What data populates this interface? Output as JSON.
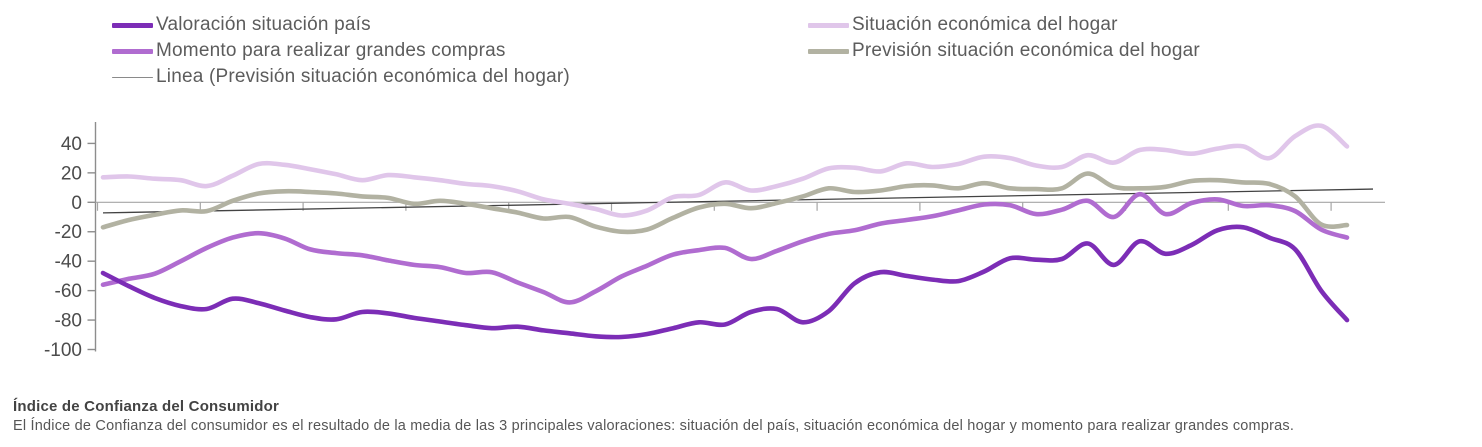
{
  "legend": {
    "columns": [
      {
        "items": [
          {
            "label": "Valoración situación país",
            "color": "#7c2db6",
            "thickness": 5
          },
          {
            "label": "Momento para realizar grandes compras",
            "color": "#b06cd0",
            "thickness": 5
          },
          {
            "label": "Linea (Previsión situación económica del hogar)",
            "color": "#8a8a8a",
            "thickness": 1
          }
        ]
      },
      {
        "items": [
          {
            "label": "Situación económica del hogar",
            "color": "#e0c6ea",
            "thickness": 5
          },
          {
            "label": "Previsión situación económica del hogar",
            "color": "#b2b2a2",
            "thickness": 5
          }
        ]
      }
    ]
  },
  "footer": {
    "title": "Índice de Confianza del Consumidor",
    "description": "El Índice de Confianza del consumidor es el resultado de la media de las 3 principales valoraciones: situación del país, situación económica del hogar y momento para realizar grandes compras."
  },
  "chart_data": {
    "type": "line",
    "title": "",
    "xlabel": "",
    "ylabel": "",
    "ylim": [
      -100,
      55
    ],
    "yticks": [
      40,
      20,
      0,
      -20,
      -40,
      -60,
      -80,
      -100
    ],
    "grid": false,
    "legend_position": "top",
    "x_axis_labels": "none shown (time axis with unlabeled year ticks)",
    "series": [
      {
        "id": "situacion-economica-hogar",
        "name": "Situación económica del hogar",
        "color": "#e0c6ea",
        "values": [
          17,
          17.5,
          16,
          15,
          11,
          18,
          26,
          25.5,
          22.5,
          19,
          15,
          18.5,
          17,
          15,
          12.5,
          11,
          7.5,
          2,
          -1,
          -4.5,
          -9,
          -5.5,
          3.5,
          5,
          13.5,
          8,
          11,
          16,
          23,
          23.5,
          21,
          26.5,
          24,
          26,
          31,
          30,
          25,
          24,
          32,
          27,
          35.5,
          35.5,
          33,
          36.5,
          38,
          30,
          45,
          52,
          38
        ]
      },
      {
        "id": "prevision-situacion-economica-hogar",
        "name": "Previsión situación económica del hogar",
        "color": "#b2b2a2",
        "values": [
          -17,
          -12,
          -8.5,
          -5.5,
          -6,
          1,
          6,
          7.5,
          7,
          6,
          4,
          3,
          -1,
          1,
          -1,
          -4,
          -7,
          -11,
          -10,
          -16.5,
          -20,
          -18.5,
          -10.5,
          -3.5,
          -1,
          -4,
          -0.5,
          4,
          9.5,
          7,
          8,
          11,
          11.5,
          9.5,
          13,
          9.5,
          9,
          9.5,
          19.5,
          10.5,
          9.5,
          10.5,
          14.5,
          15,
          13.5,
          12.5,
          4,
          -15,
          -15.5
        ]
      },
      {
        "id": "momento-grandes-compras",
        "name": "Momento para realizar grandes compras",
        "color": "#b06cd0",
        "values": [
          -56,
          -52,
          -48.5,
          -40,
          -31,
          -24,
          -21,
          -24.5,
          -32,
          -34.5,
          -36,
          -39.5,
          -42.5,
          -44,
          -48,
          -47.5,
          -54.5,
          -61,
          -68,
          -60.5,
          -50.5,
          -43,
          -35.5,
          -32.5,
          -31,
          -38.5,
          -33,
          -26.5,
          -21.5,
          -19,
          -14.5,
          -12,
          -9.5,
          -5.5,
          -1.5,
          -2,
          -8,
          -5,
          1,
          -10,
          5.5,
          -8,
          -0.5,
          2,
          -2.5,
          -2,
          -6,
          -18.5,
          -24
        ]
      },
      {
        "id": "valoracion-situacion-pais",
        "name": "Valoración situación país",
        "color": "#7c2db6",
        "values": [
          -48,
          -57,
          -65,
          -70.5,
          -72.5,
          -65.5,
          -68.5,
          -73.5,
          -78,
          -79.5,
          -74.5,
          -75.5,
          -78.5,
          -81,
          -83.5,
          -85.5,
          -84.5,
          -87,
          -89,
          -91,
          -91.5,
          -89.5,
          -85.5,
          -81.5,
          -83,
          -74.5,
          -72.5,
          -81.5,
          -74,
          -55,
          -47.5,
          -50,
          -52.5,
          -53.5,
          -47,
          -38,
          -39,
          -38.5,
          -28,
          -42.5,
          -26.5,
          -35,
          -29,
          -19,
          -17,
          -24,
          -32,
          -60,
          -80
        ]
      }
    ],
    "trendline": {
      "name": "Linea (Previsión situación económica del hogar)",
      "color": "#434343",
      "from": -7.2,
      "to": 9
    }
  }
}
